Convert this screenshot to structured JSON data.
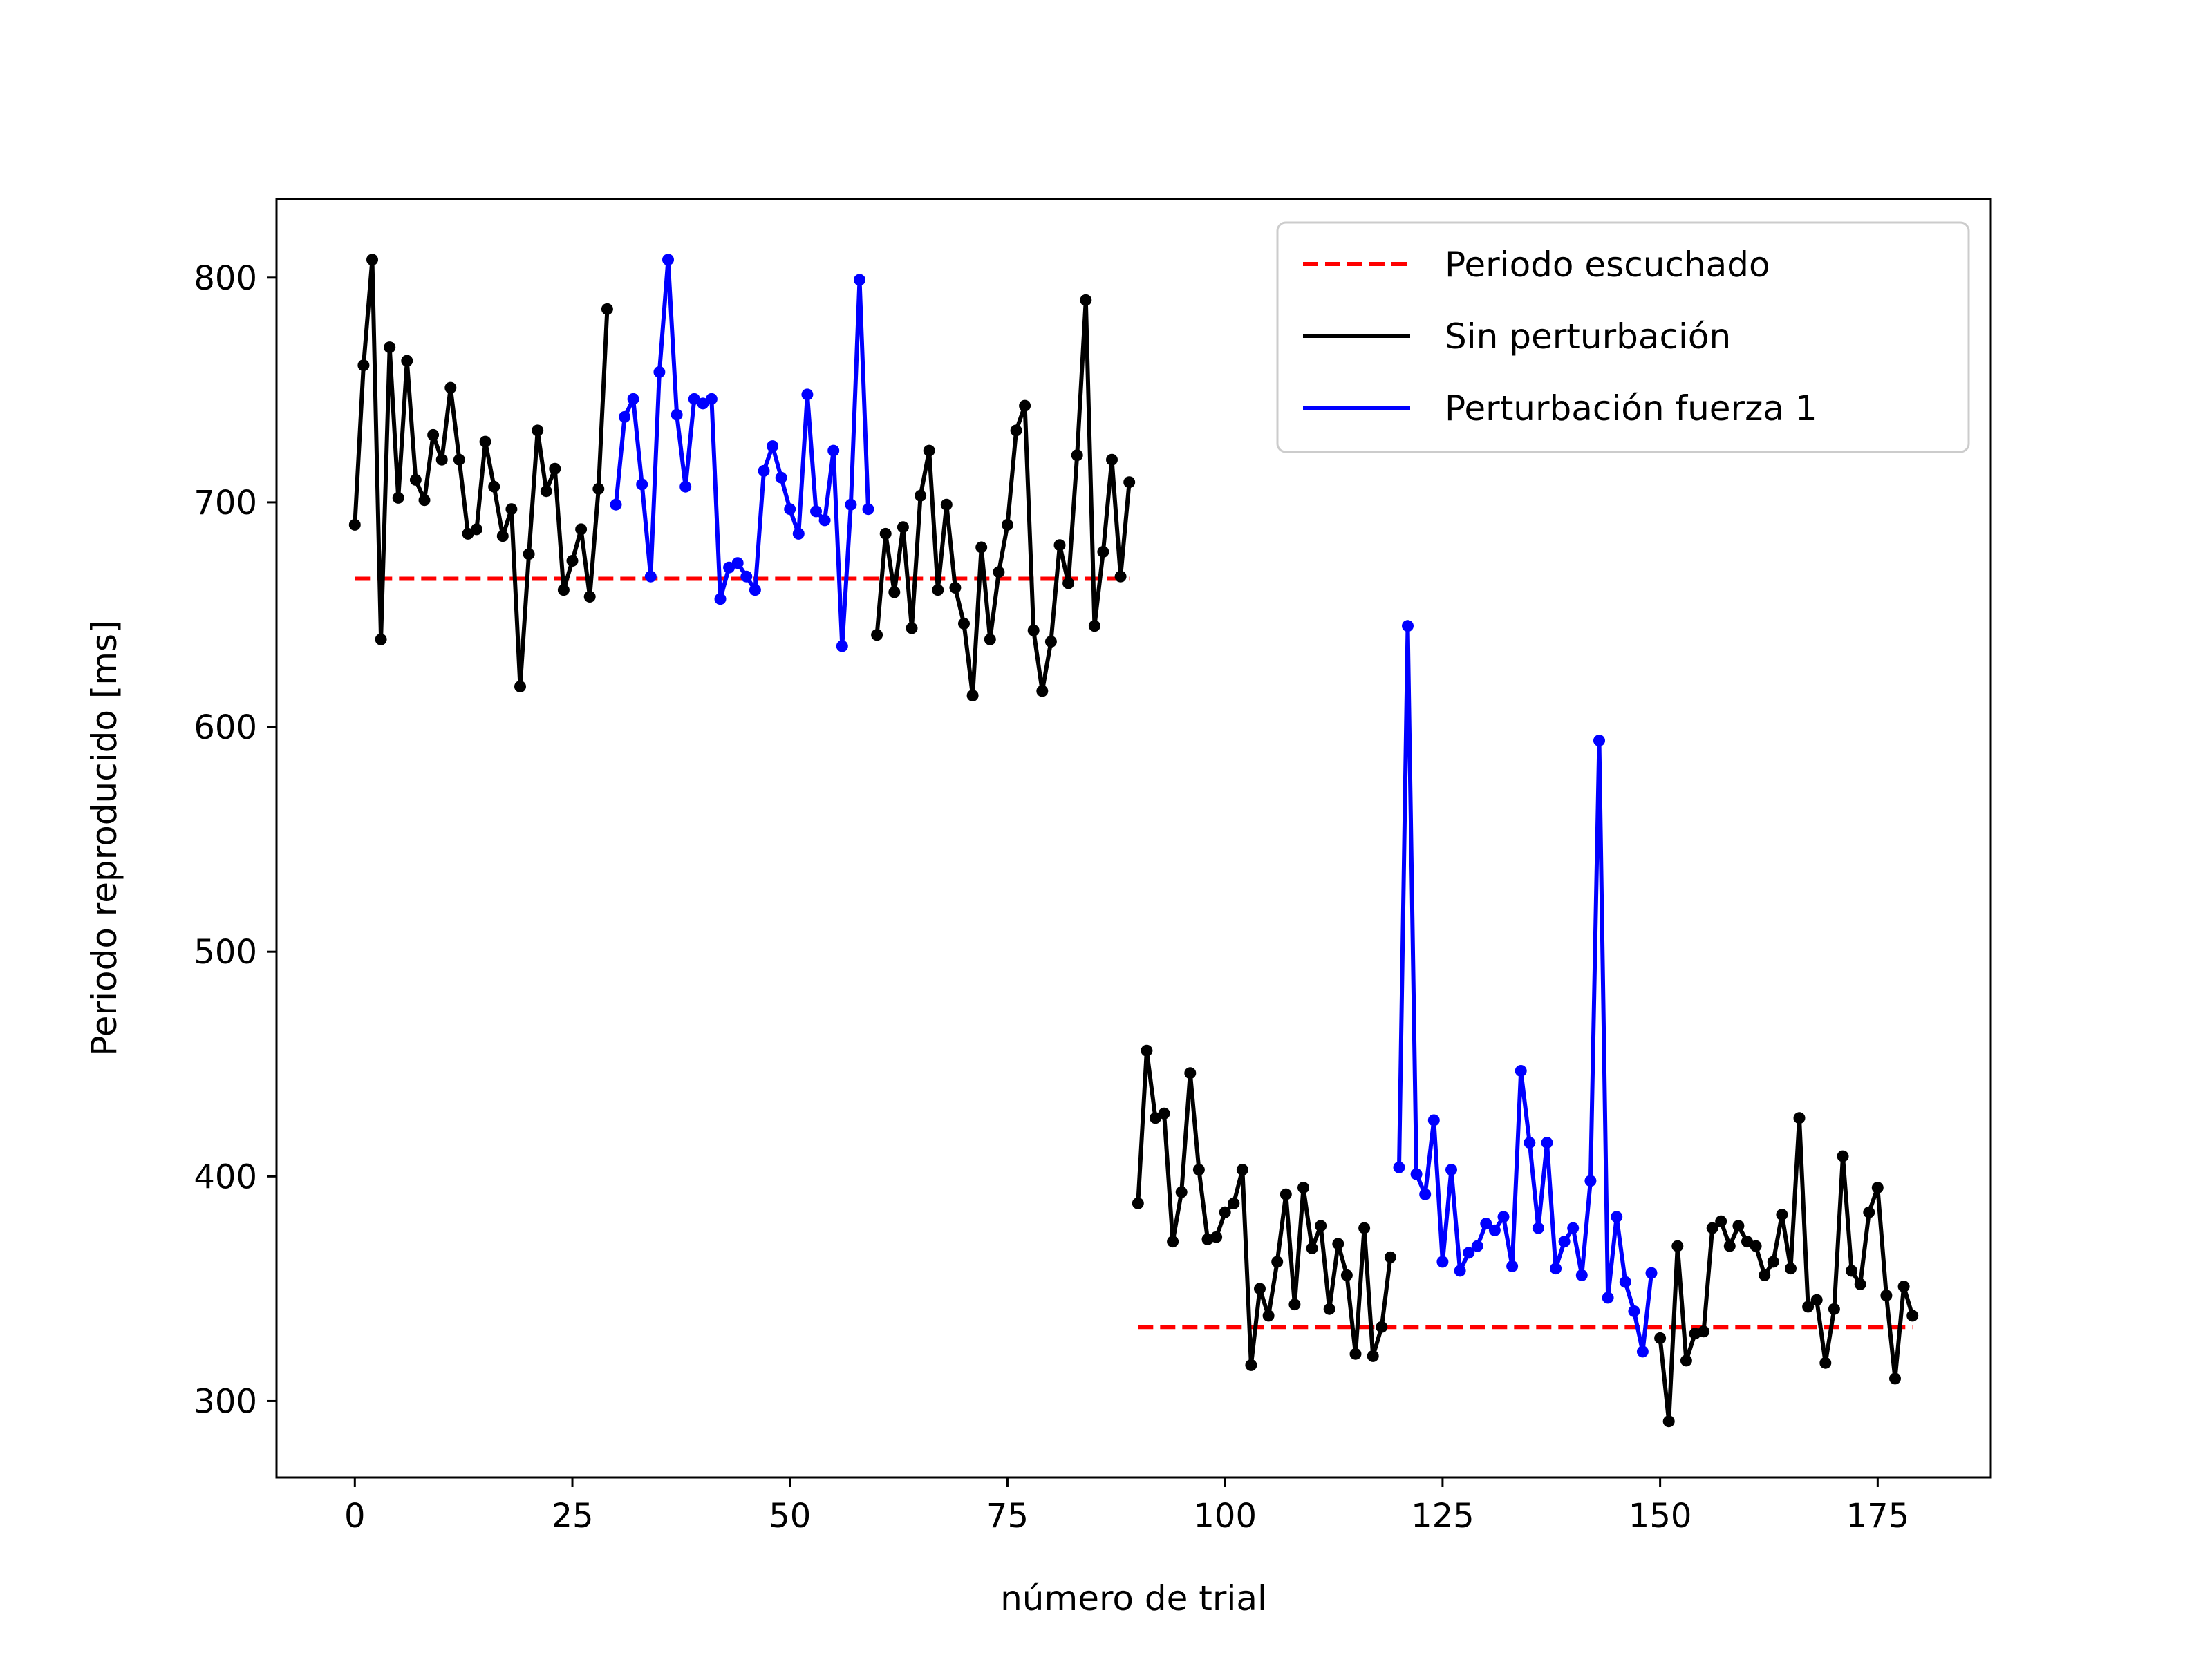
{
  "chart_data": {
    "type": "line",
    "title": "",
    "xlabel": "número de trial",
    "ylabel": "Periodo reproducido [ms]",
    "xlim": [
      -9,
      188
    ],
    "ylim": [
      266,
      835
    ],
    "xticks": [
      0,
      25,
      50,
      75,
      100,
      125,
      150,
      175
    ],
    "yticks": [
      300,
      400,
      500,
      600,
      700,
      800
    ],
    "grid": false,
    "legend_position": "top-right",
    "legend": [
      {
        "label": "Periodo escuchado",
        "color": "#ff0000",
        "style": "dashed"
      },
      {
        "label": "Sin perturbación",
        "color": "#000000",
        "style": "solid"
      },
      {
        "label": "Perturbación fuerza 1",
        "color": "#0000ff",
        "style": "solid"
      }
    ],
    "series": [
      {
        "name": "Periodo escuchado",
        "color": "#ff0000",
        "style": "dashed",
        "markers": false,
        "segments": [
          {
            "x": [
              0,
              89
            ],
            "y": [
              666,
              666
            ]
          },
          {
            "x": [
              90,
              179
            ],
            "y": [
              333,
              333
            ]
          }
        ]
      },
      {
        "name": "Sin perturbación",
        "color": "#000000",
        "style": "solid",
        "markers": true,
        "segments": [
          {
            "x": [
              0,
              1,
              2,
              3,
              4,
              5,
              6,
              7,
              8,
              9,
              10,
              11,
              12,
              13,
              14,
              15,
              16,
              17,
              18,
              19,
              20,
              21,
              22,
              23,
              24,
              25,
              26,
              27,
              28,
              29
            ],
            "y": [
              690,
              761,
              808,
              639,
              769,
              702,
              763,
              710,
              701,
              730,
              719,
              751,
              719,
              686,
              688,
              727,
              707,
              685,
              697,
              618,
              677,
              732,
              705,
              715,
              661,
              674,
              688,
              658,
              706,
              786
            ]
          },
          {
            "x": [
              60,
              61,
              62,
              63,
              64,
              65,
              66,
              67,
              68,
              69,
              70,
              71,
              72,
              73,
              74,
              75,
              76,
              77,
              78,
              79,
              80,
              81,
              82,
              83,
              84,
              85,
              86,
              87,
              88,
              89
            ],
            "y": [
              641,
              686,
              660,
              689,
              644,
              703,
              723,
              661,
              699,
              662,
              646,
              614,
              680,
              639,
              669,
              690,
              732,
              743,
              643,
              616,
              638,
              681,
              664,
              721,
              790,
              645,
              678,
              719,
              667,
              709
            ]
          },
          {
            "x": [
              90,
              91,
              92,
              93,
              94,
              95,
              96,
              97,
              98,
              99,
              100,
              101,
              102,
              103,
              104,
              105,
              106,
              107,
              108,
              109,
              110,
              111,
              112,
              113,
              114,
              115,
              116,
              117,
              118,
              119
            ],
            "y": [
              388,
              456,
              426,
              428,
              371,
              393,
              446,
              403,
              372,
              373,
              384,
              388,
              403,
              316,
              350,
              338,
              362,
              392,
              343,
              395,
              368,
              378,
              341,
              370,
              356,
              321,
              377,
              320,
              333,
              364
            ]
          },
          {
            "x": [
              150,
              151,
              152,
              153,
              154,
              155,
              156,
              157,
              158,
              159,
              160,
              161,
              162,
              163,
              164,
              165,
              166,
              167,
              168,
              169,
              170,
              171,
              172,
              173,
              174,
              175,
              176,
              177,
              178,
              179
            ],
            "y": [
              328,
              291,
              369,
              318,
              330,
              331,
              377,
              380,
              369,
              378,
              371,
              369,
              356,
              362,
              383,
              359,
              426,
              342,
              345,
              317,
              341,
              409,
              358,
              352,
              384,
              395,
              347,
              310,
              351,
              338
            ]
          }
        ]
      },
      {
        "name": "Perturbación fuerza 1",
        "color": "#0000ff",
        "style": "solid",
        "markers": true,
        "segments": [
          {
            "x": [
              30,
              31,
              32,
              33,
              34,
              35,
              36,
              37,
              38,
              39,
              40,
              41,
              42,
              43,
              44,
              45,
              46,
              47,
              48,
              49,
              50,
              51,
              52,
              53,
              54,
              55,
              56,
              57,
              58,
              59
            ],
            "y": [
              699,
              738,
              746,
              708,
              667,
              758,
              808,
              739,
              707,
              746,
              744,
              746,
              657,
              671,
              673,
              667,
              661,
              714,
              725,
              711,
              697,
              686,
              748,
              696,
              692,
              723,
              636,
              699,
              799,
              697
            ]
          },
          {
            "x": [
              120,
              121,
              122,
              123,
              124,
              125,
              126,
              127,
              128,
              129,
              130,
              131,
              132,
              133,
              134,
              135,
              136,
              137,
              138,
              139,
              140,
              141,
              142,
              143,
              144,
              145,
              146,
              147,
              148,
              149
            ],
            "y": [
              404,
              645,
              401,
              392,
              425,
              362,
              403,
              358,
              366,
              369,
              379,
              376,
              382,
              360,
              447,
              415,
              377,
              415,
              359,
              371,
              377,
              356,
              398,
              594,
              346,
              382,
              353,
              340,
              322,
              357
            ]
          }
        ]
      }
    ]
  }
}
